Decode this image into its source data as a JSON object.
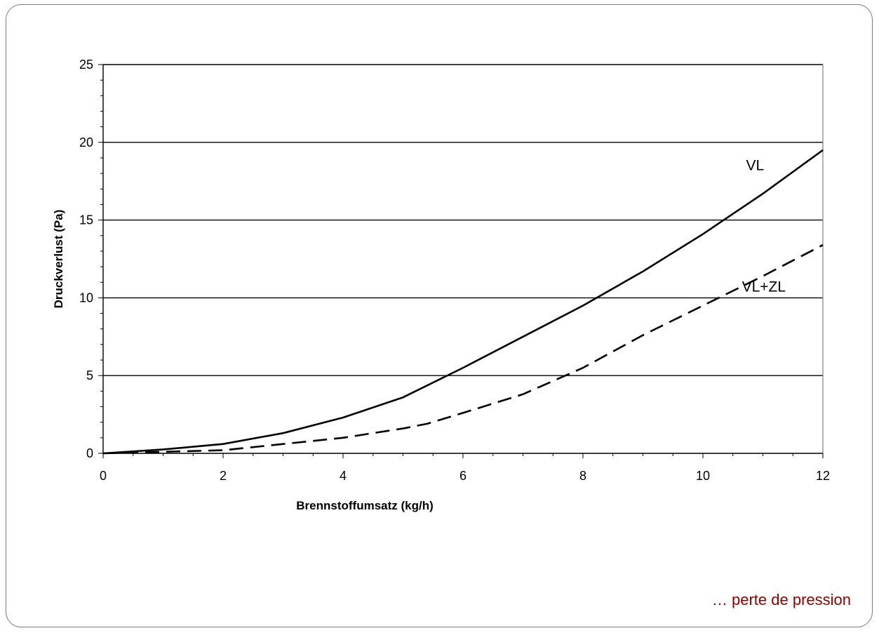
{
  "chart_data": {
    "type": "line",
    "xlabel": "Brennstoffumsatz (kg/h)",
    "ylabel": "Druckverlust (Pa)",
    "xlim": [
      0,
      12
    ],
    "ylim": [
      0,
      25
    ],
    "xticks": [
      0,
      2,
      4,
      6,
      8,
      10,
      12
    ],
    "yticks": [
      0,
      5,
      10,
      15,
      20,
      25
    ],
    "grid": "horizontal",
    "legend": "inline labels",
    "series": [
      {
        "name": "VL",
        "style": "solid",
        "color": "#000000",
        "x": [
          0,
          1,
          2,
          3,
          4,
          5,
          6,
          7,
          8,
          9,
          10,
          11,
          12
        ],
        "y": [
          0,
          0.25,
          0.6,
          1.3,
          2.3,
          3.6,
          5.5,
          7.5,
          9.5,
          11.7,
          14.1,
          16.7,
          19.5
        ]
      },
      {
        "name": "VL+ZL",
        "style": "dashed",
        "color": "#000000",
        "x": [
          0,
          1,
          2,
          3,
          4,
          5,
          5.4,
          6,
          7,
          8,
          9,
          10,
          11,
          12
        ],
        "y": [
          0,
          0.1,
          0.2,
          0.6,
          1.0,
          1.6,
          1.9,
          2.6,
          3.8,
          5.5,
          7.6,
          9.5,
          11.4,
          13.4
        ]
      }
    ]
  },
  "caption": "… perte de pression"
}
